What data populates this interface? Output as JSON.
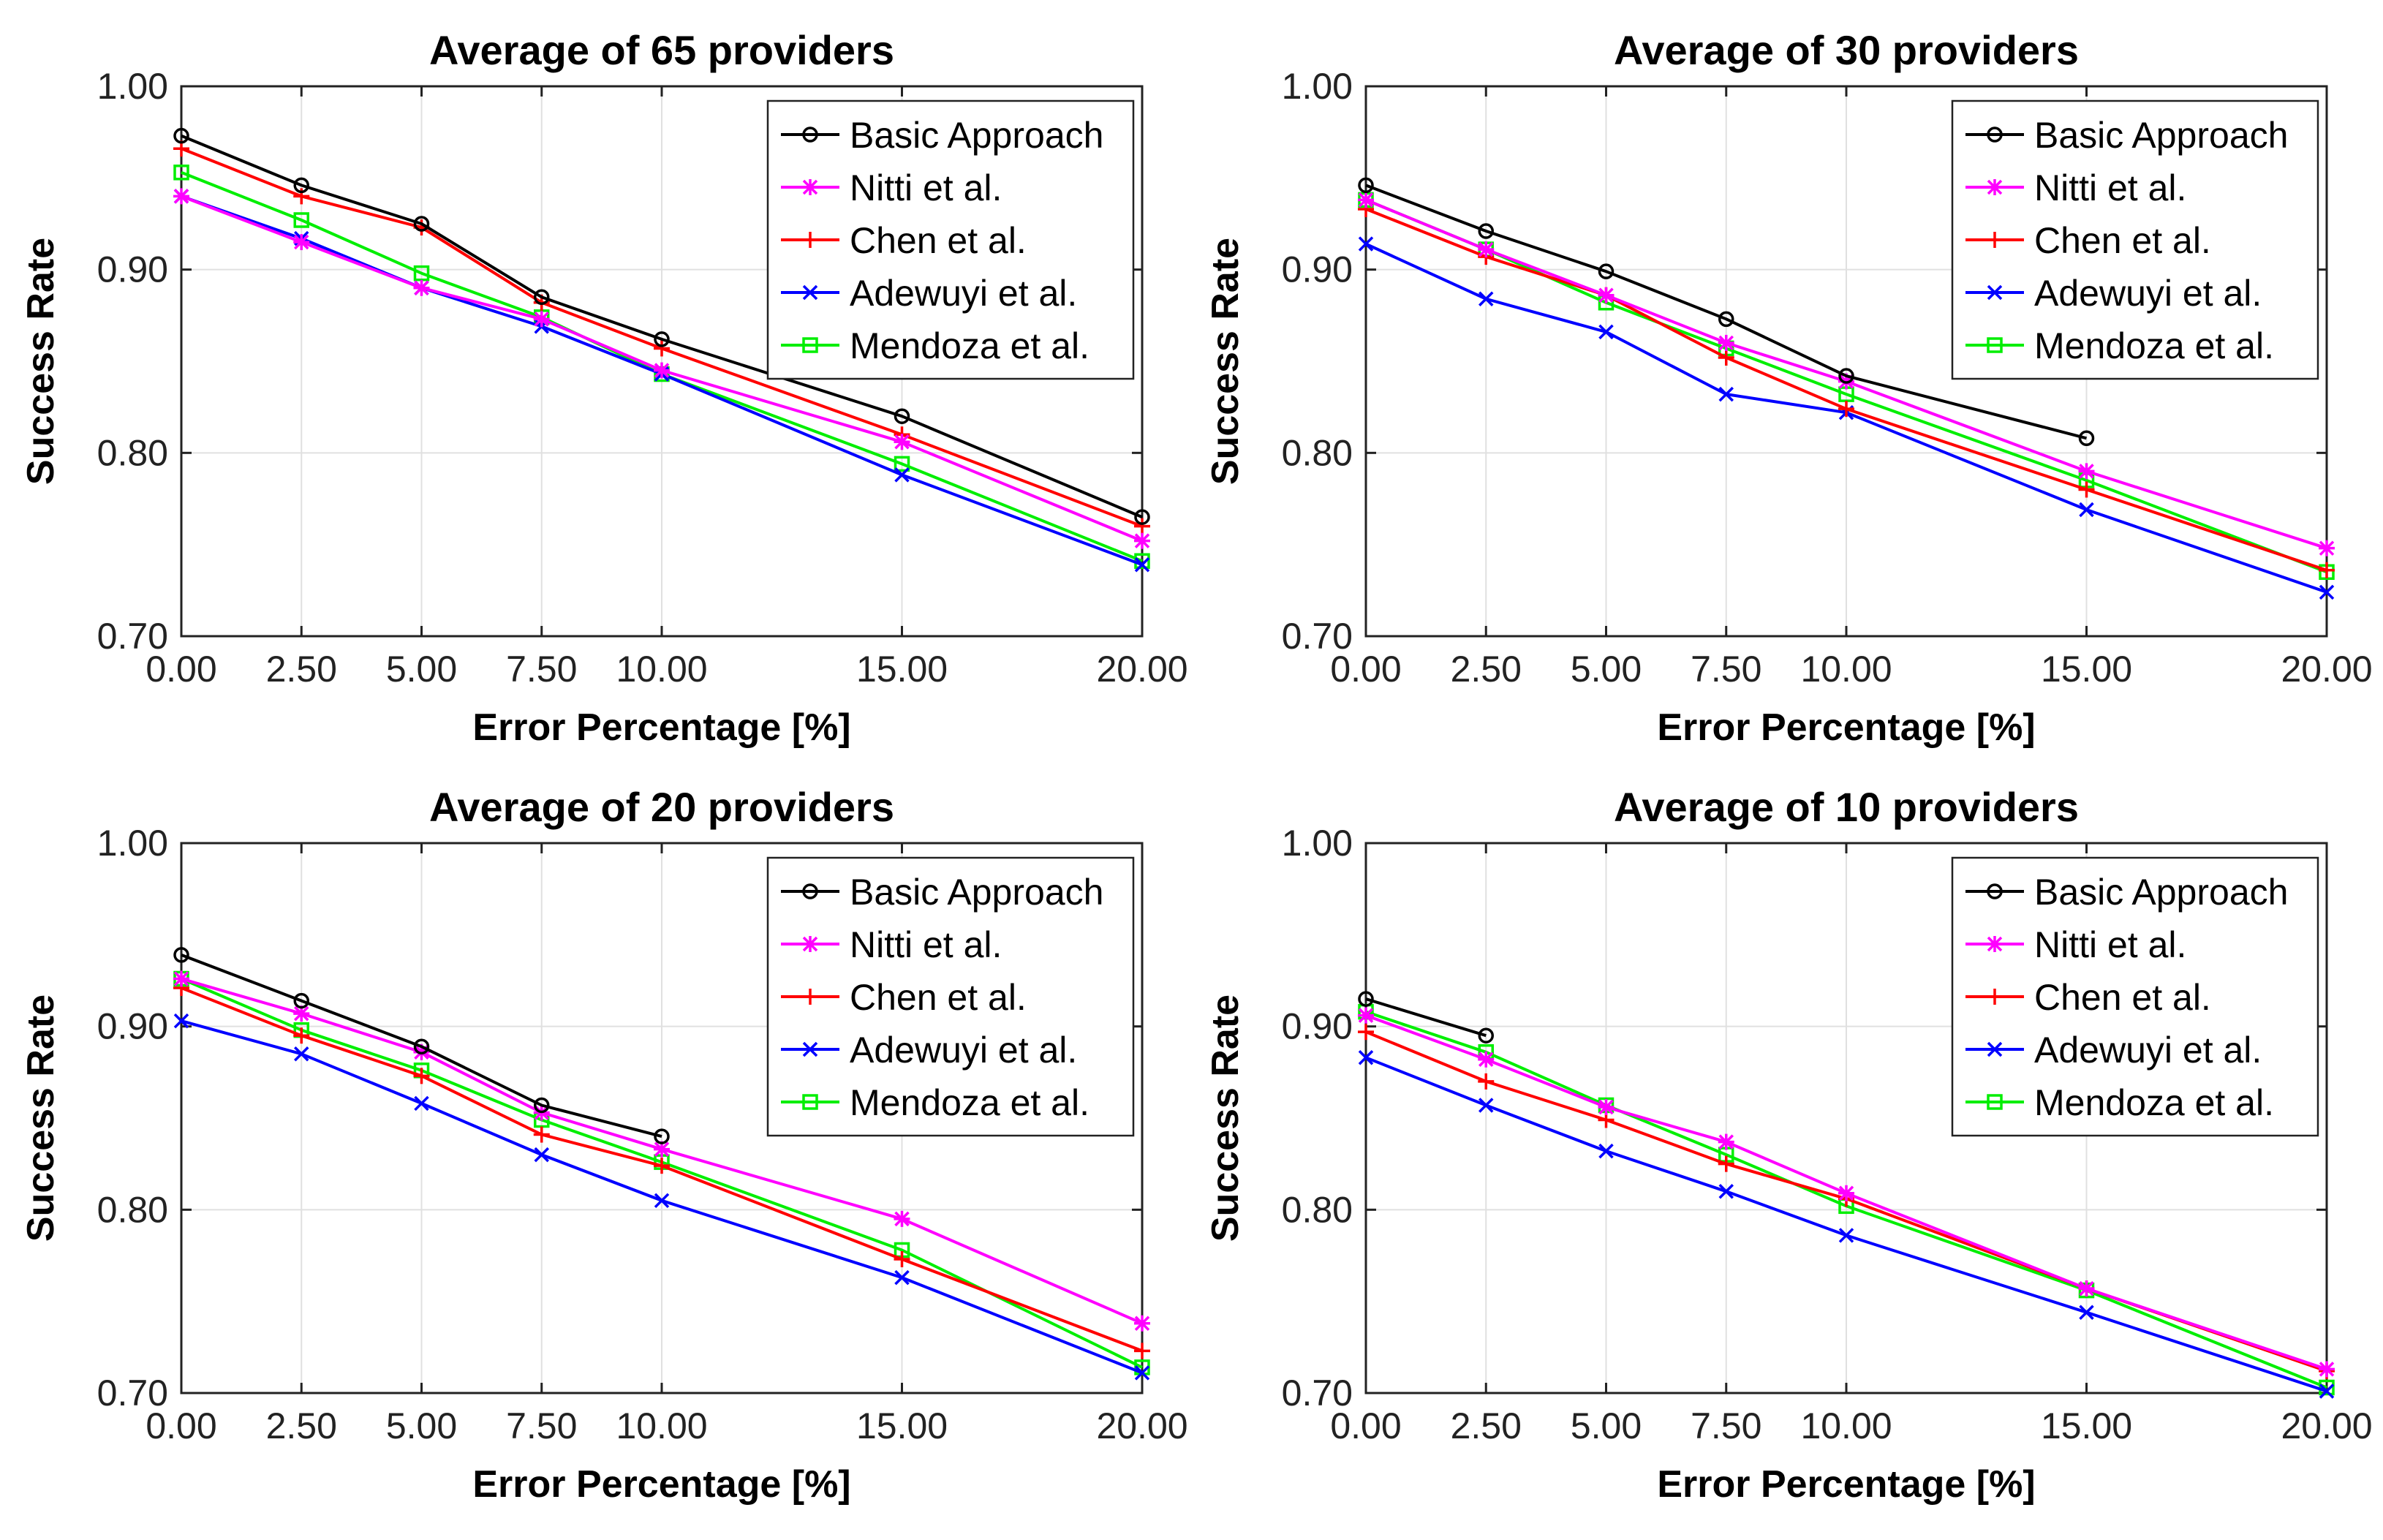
{
  "chart_data": [
    {
      "type": "line",
      "title": "Average of 65 providers",
      "xlabel": "Error Percentage [%]",
      "ylabel": "Success Rate",
      "xlim": [
        0,
        20
      ],
      "ylim": [
        0.7,
        1.0
      ],
      "grid": true,
      "legend_position": "top-right",
      "x_ticks": [
        0,
        2.5,
        5,
        7.5,
        10,
        15,
        20
      ],
      "x_tick_labels": [
        "0.00",
        "2.50",
        "5.00",
        "7.50",
        "10.00",
        "15.00",
        "20.00"
      ],
      "y_ticks": [
        0.7,
        0.8,
        0.9,
        1.0
      ],
      "y_tick_labels": [
        "0.70",
        "0.80",
        "0.90",
        "1.00"
      ],
      "series": [
        {
          "name": "Basic Approach",
          "color": "#000000",
          "marker": "circle",
          "x": [
            0,
            2.5,
            5,
            7.5,
            10,
            15,
            20
          ],
          "values": [
            0.973,
            0.946,
            0.925,
            0.885,
            0.862,
            0.82,
            0.765
          ]
        },
        {
          "name": "Nitti et al.",
          "color": "#ff00ff",
          "marker": "asterisk",
          "x": [
            0,
            2.5,
            5,
            7.5,
            10,
            15,
            20
          ],
          "values": [
            0.94,
            0.915,
            0.89,
            0.873,
            0.845,
            0.806,
            0.752
          ]
        },
        {
          "name": "Chen et al.",
          "color": "#ff0000",
          "marker": "plus",
          "x": [
            0,
            2.5,
            5,
            7.5,
            10,
            15,
            20
          ],
          "values": [
            0.966,
            0.94,
            0.923,
            0.882,
            0.857,
            0.81,
            0.76
          ]
        },
        {
          "name": "Adewuyi et al.",
          "color": "#0000ff",
          "marker": "x",
          "x": [
            0,
            2.5,
            5,
            7.5,
            10,
            15,
            20
          ],
          "values": [
            0.94,
            0.917,
            0.89,
            0.869,
            0.843,
            0.788,
            0.739
          ]
        },
        {
          "name": "Mendoza et al.",
          "color": "#00ee00",
          "marker": "square",
          "x": [
            0,
            2.5,
            5,
            7.5,
            10,
            15,
            20
          ],
          "values": [
            0.953,
            0.927,
            0.898,
            0.874,
            0.843,
            0.794,
            0.741
          ]
        }
      ]
    },
    {
      "type": "line",
      "title": "Average of 30 providers",
      "xlabel": "Error Percentage [%]",
      "ylabel": "Success Rate",
      "xlim": [
        0,
        20
      ],
      "ylim": [
        0.7,
        1.0
      ],
      "grid": true,
      "legend_position": "top-right",
      "x_ticks": [
        0,
        2.5,
        5,
        7.5,
        10,
        15,
        20
      ],
      "x_tick_labels": [
        "0.00",
        "2.50",
        "5.00",
        "7.50",
        "10.00",
        "15.00",
        "20.00"
      ],
      "y_ticks": [
        0.7,
        0.8,
        0.9,
        1.0
      ],
      "y_tick_labels": [
        "0.70",
        "0.80",
        "0.90",
        "1.00"
      ],
      "series": [
        {
          "name": "Basic Approach",
          "color": "#000000",
          "marker": "circle",
          "x": [
            0,
            2.5,
            5,
            7.5,
            10,
            15
          ],
          "values": [
            0.946,
            0.921,
            0.899,
            0.873,
            0.842,
            0.808
          ]
        },
        {
          "name": "Nitti et al.",
          "color": "#ff00ff",
          "marker": "asterisk",
          "x": [
            0,
            2.5,
            5,
            7.5,
            10,
            15,
            20
          ],
          "values": [
            0.938,
            0.911,
            0.886,
            0.86,
            0.839,
            0.79,
            0.748
          ]
        },
        {
          "name": "Chen et al.",
          "color": "#ff0000",
          "marker": "plus",
          "x": [
            0,
            2.5,
            5,
            7.5,
            10,
            15,
            20
          ],
          "values": [
            0.933,
            0.907,
            0.886,
            0.852,
            0.824,
            0.78,
            0.736
          ]
        },
        {
          "name": "Adewuyi et al.",
          "color": "#0000ff",
          "marker": "x",
          "x": [
            0,
            2.5,
            5,
            7.5,
            10,
            15,
            20
          ],
          "values": [
            0.914,
            0.884,
            0.866,
            0.832,
            0.822,
            0.769,
            0.724
          ]
        },
        {
          "name": "Mendoza et al.",
          "color": "#00ee00",
          "marker": "square",
          "x": [
            0,
            2.5,
            5,
            7.5,
            10,
            15,
            20
          ],
          "values": [
            0.938,
            0.911,
            0.882,
            0.857,
            0.832,
            0.785,
            0.735
          ]
        }
      ]
    },
    {
      "type": "line",
      "title": "Average of 20 providers",
      "xlabel": "Error Percentage [%]",
      "ylabel": "Success Rate",
      "xlim": [
        0,
        20
      ],
      "ylim": [
        0.7,
        1.0
      ],
      "grid": true,
      "legend_position": "top-right",
      "x_ticks": [
        0,
        2.5,
        5,
        7.5,
        10,
        15,
        20
      ],
      "x_tick_labels": [
        "0.00",
        "2.50",
        "5.00",
        "7.50",
        "10.00",
        "15.00",
        "20.00"
      ],
      "y_ticks": [
        0.7,
        0.8,
        0.9,
        1.0
      ],
      "y_tick_labels": [
        "0.70",
        "0.80",
        "0.90",
        "1.00"
      ],
      "series": [
        {
          "name": "Basic Approach",
          "color": "#000000",
          "marker": "circle",
          "x": [
            0,
            2.5,
            5,
            7.5,
            10
          ],
          "values": [
            0.939,
            0.914,
            0.889,
            0.857,
            0.84
          ]
        },
        {
          "name": "Nitti et al.",
          "color": "#ff00ff",
          "marker": "asterisk",
          "x": [
            0,
            2.5,
            5,
            7.5,
            10,
            15,
            20
          ],
          "values": [
            0.926,
            0.907,
            0.886,
            0.853,
            0.833,
            0.795,
            0.738
          ]
        },
        {
          "name": "Chen et al.",
          "color": "#ff0000",
          "marker": "plus",
          "x": [
            0,
            2.5,
            5,
            7.5,
            10,
            15,
            20
          ],
          "values": [
            0.921,
            0.895,
            0.873,
            0.841,
            0.824,
            0.773,
            0.723
          ]
        },
        {
          "name": "Adewuyi et al.",
          "color": "#0000ff",
          "marker": "x",
          "x": [
            0,
            2.5,
            5,
            7.5,
            10,
            15,
            20
          ],
          "values": [
            0.903,
            0.885,
            0.858,
            0.83,
            0.805,
            0.763,
            0.711
          ]
        },
        {
          "name": "Mendoza et al.",
          "color": "#00ee00",
          "marker": "square",
          "x": [
            0,
            2.5,
            5,
            7.5,
            10,
            15,
            20
          ],
          "values": [
            0.926,
            0.898,
            0.876,
            0.849,
            0.826,
            0.778,
            0.714
          ]
        }
      ]
    },
    {
      "type": "line",
      "title": "Average of 10 providers",
      "xlabel": "Error Percentage [%]",
      "ylabel": "Success Rate",
      "xlim": [
        0,
        20
      ],
      "ylim": [
        0.7,
        1.0
      ],
      "grid": true,
      "legend_position": "top-right",
      "x_ticks": [
        0,
        2.5,
        5,
        7.5,
        10,
        15,
        20
      ],
      "x_tick_labels": [
        "0.00",
        "2.50",
        "5.00",
        "7.50",
        "10.00",
        "15.00",
        "20.00"
      ],
      "y_ticks": [
        0.7,
        0.8,
        0.9,
        1.0
      ],
      "y_tick_labels": [
        "0.70",
        "0.80",
        "0.90",
        "1.00"
      ],
      "series": [
        {
          "name": "Basic Approach",
          "color": "#000000",
          "marker": "circle",
          "x": [
            0,
            2.5
          ],
          "values": [
            0.915,
            0.895
          ]
        },
        {
          "name": "Nitti et al.",
          "color": "#ff00ff",
          "marker": "asterisk",
          "x": [
            0,
            2.5,
            5,
            7.5,
            10,
            15,
            20
          ],
          "values": [
            0.906,
            0.882,
            0.856,
            0.837,
            0.809,
            0.757,
            0.713
          ]
        },
        {
          "name": "Chen et al.",
          "color": "#ff0000",
          "marker": "plus",
          "x": [
            0,
            2.5,
            5,
            7.5,
            10,
            15,
            20
          ],
          "values": [
            0.897,
            0.87,
            0.849,
            0.825,
            0.806,
            0.757,
            0.712
          ]
        },
        {
          "name": "Adewuyi et al.",
          "color": "#0000ff",
          "marker": "x",
          "x": [
            0,
            2.5,
            5,
            7.5,
            10,
            15,
            20
          ],
          "values": [
            0.883,
            0.857,
            0.832,
            0.81,
            0.786,
            0.744,
            0.701
          ]
        },
        {
          "name": "Mendoza et al.",
          "color": "#00ee00",
          "marker": "square",
          "x": [
            0,
            2.5,
            5,
            7.5,
            10,
            15,
            20
          ],
          "values": [
            0.908,
            0.886,
            0.857,
            0.83,
            0.802,
            0.756,
            0.703
          ]
        }
      ]
    }
  ]
}
